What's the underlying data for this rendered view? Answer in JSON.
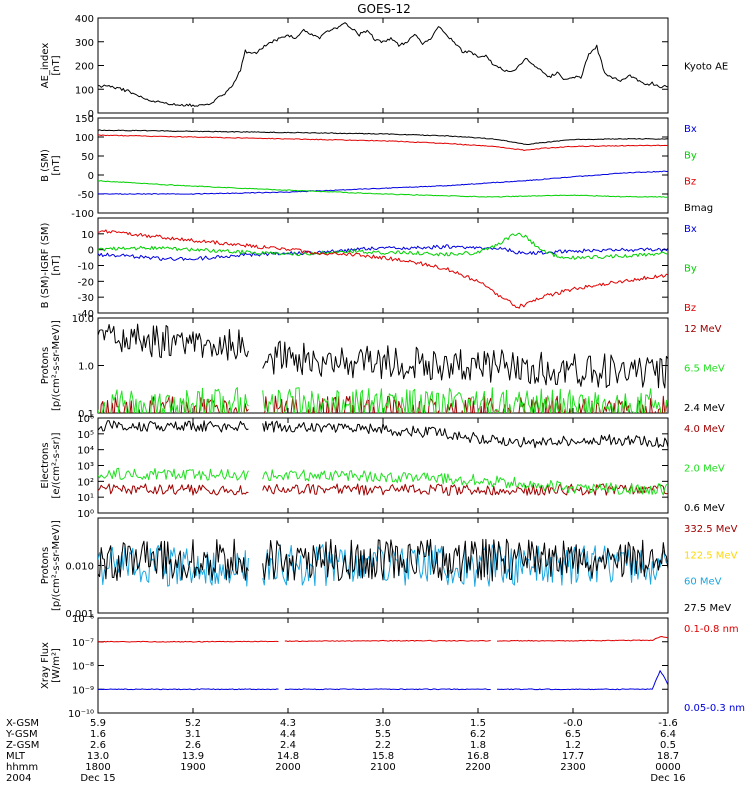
{
  "title": "GOES-12",
  "colors": {
    "black": "#000000",
    "red": "#e00000",
    "darkred": "#a00000",
    "blue": "#0000e0",
    "green": "#00d000",
    "brightgreen": "#22e022",
    "yellow": "#ffd800",
    "cyan": "#1aa6e0"
  },
  "chart_data": [
    {
      "type": "line",
      "ylabel": [
        "AE_index",
        "[nT]"
      ],
      "ylim": [
        0,
        400
      ],
      "yticks": [
        0,
        100,
        200,
        300,
        400
      ],
      "yscale": "linear",
      "legend_placement": "right",
      "series": [
        {
          "name": "Kyoto AE",
          "color": "#000000",
          "x": [
            0,
            5,
            10,
            15,
            20,
            25,
            30,
            38,
            45,
            52,
            60,
            66,
            72,
            75,
            78,
            81,
            84,
            87,
            90,
            93,
            96,
            100,
            105,
            110,
            115,
            120,
            125,
            130,
            135,
            140,
            145,
            150,
            155,
            160,
            165,
            170,
            175,
            180,
            185,
            190,
            195,
            200,
            205,
            210,
            215,
            220,
            225,
            230,
            235,
            240,
            245,
            250,
            255,
            260,
            265,
            270,
            275,
            280,
            285,
            290,
            295,
            300,
            305,
            310,
            315,
            320,
            325,
            330,
            335,
            340,
            345,
            350,
            355,
            360
          ],
          "y": [
            110,
            115,
            105,
            100,
            90,
            75,
            55,
            45,
            40,
            35,
            32,
            35,
            40,
            60,
            70,
            90,
            110,
            140,
            180,
            260,
            250,
            255,
            280,
            300,
            315,
            330,
            310,
            350,
            330,
            315,
            345,
            355,
            380,
            360,
            330,
            345,
            310,
            300,
            315,
            285,
            300,
            330,
            290,
            315,
            365,
            330,
            300,
            260,
            255,
            240,
            240,
            200,
            185,
            175,
            190,
            230,
            200,
            180,
            150,
            170,
            140,
            150,
            150,
            250,
            280,
            170,
            150,
            130,
            160,
            145,
            120,
            125,
            110,
            115
          ]
        }
      ]
    },
    {
      "type": "line",
      "ylabel": [
        "B (SM)",
        "[nT]"
      ],
      "ylim": [
        -100,
        150
      ],
      "yticks": [
        -100,
        -50,
        0,
        50,
        100,
        150
      ],
      "yscale": "linear",
      "legend_placement": "right",
      "series": [
        {
          "name": "Bx",
          "color": "#0000e0",
          "x": [
            0,
            60,
            120,
            180,
            220,
            250,
            270,
            300,
            330,
            360
          ],
          "y": [
            -50,
            -50,
            -45,
            -35,
            -28,
            -20,
            -15,
            -5,
            5,
            10
          ]
        },
        {
          "name": "By",
          "color": "#00d000",
          "x": [
            0,
            40,
            80,
            120,
            180,
            220,
            250,
            270,
            300,
            330,
            360
          ],
          "y": [
            -15,
            -25,
            -33,
            -40,
            -50,
            -55,
            -58,
            -55,
            -53,
            -57,
            -58
          ]
        },
        {
          "name": "Bz",
          "color": "#e00000",
          "x": [
            0,
            60,
            120,
            180,
            220,
            250,
            260,
            270,
            280,
            300,
            330,
            360
          ],
          "y": [
            105,
            100,
            95,
            90,
            83,
            75,
            70,
            65,
            70,
            75,
            77,
            78
          ]
        },
        {
          "name": "Bmag",
          "color": "#000000",
          "x": [
            0,
            60,
            120,
            180,
            220,
            250,
            260,
            270,
            280,
            300,
            330,
            360
          ],
          "y": [
            118,
            115,
            112,
            108,
            103,
            95,
            88,
            80,
            85,
            93,
            95,
            95
          ]
        }
      ]
    },
    {
      "type": "line",
      "ylabel": [
        "B (SM)-IGRF (SM)",
        "[nT]"
      ],
      "ylim": [
        -40,
        20
      ],
      "yticks": [
        -40,
        -30,
        -20,
        -10,
        0,
        10
      ],
      "yscale": "linear",
      "legend_placement": "right",
      "series": [
        {
          "name": "Bx",
          "color": "#0000e0",
          "x": [
            0,
            20,
            40,
            60,
            80,
            100,
            120,
            140,
            160,
            180,
            200,
            220,
            240,
            255,
            265,
            280,
            300,
            320,
            340,
            360
          ],
          "y": [
            -3,
            -4,
            -6,
            -6,
            -4,
            -3,
            -2,
            -2,
            0,
            1,
            1,
            2,
            1,
            1,
            -2,
            -2,
            -1,
            0,
            0,
            0
          ]
        },
        {
          "name": "By",
          "color": "#00d000",
          "x": [
            0,
            20,
            40,
            60,
            80,
            100,
            120,
            140,
            160,
            180,
            200,
            220,
            240,
            250,
            260,
            265,
            270,
            280,
            290,
            300,
            330,
            360
          ],
          "y": [
            0,
            1,
            1,
            0,
            -1,
            -2,
            -3,
            -2,
            -1,
            -2,
            -2,
            -3,
            -2,
            2,
            8,
            10,
            8,
            0,
            -4,
            -5,
            -4,
            -2
          ]
        },
        {
          "name": "Bz",
          "color": "#e00000",
          "x": [
            0,
            20,
            40,
            60,
            80,
            100,
            120,
            140,
            160,
            180,
            200,
            220,
            240,
            255,
            265,
            270,
            280,
            300,
            330,
            360
          ],
          "y": [
            12,
            10,
            8,
            6,
            4,
            2,
            0,
            -2,
            -3,
            -5,
            -8,
            -12,
            -20,
            -30,
            -36,
            -35,
            -30,
            -25,
            -20,
            -16
          ]
        }
      ]
    },
    {
      "type": "line",
      "ylabel": [
        "Protons",
        "[p/(cm²-s-sr-MeV)]"
      ],
      "ylim": [
        0.1,
        10
      ],
      "yticks": [
        0.1,
        1.0,
        10.0
      ],
      "ytick_labels": [
        "0.1",
        "1.0",
        "10.0"
      ],
      "yscale": "log",
      "legend_placement": "right",
      "series": [
        {
          "name": "12 MeV",
          "color": "#a00000",
          "x": [
            0,
            360
          ],
          "y": [
            0.1,
            0.1
          ]
        },
        {
          "name": "6.5 MeV",
          "color": "#22e022",
          "x": [
            0,
            360
          ],
          "y": [
            0.15,
            0.15
          ]
        },
        {
          "name": "2.4 MeV",
          "color": "#000000",
          "x": [
            0,
            95,
            105,
            360
          ],
          "y": [
            4.0,
            2.5,
            1.5,
            0.7
          ]
        }
      ]
    },
    {
      "type": "line",
      "ylabel": [
        "Electrons",
        "[e/(cm²-s-sr)]"
      ],
      "ylim": [
        1,
        1000000
      ],
      "yticks": [
        1,
        10,
        100,
        1000,
        10000,
        100000,
        1000000
      ],
      "ytick_labels": [
        "10⁰",
        "10¹",
        "10²",
        "10³",
        "10⁴",
        "10⁵",
        "10⁶"
      ],
      "yscale": "log",
      "legend_placement": "right",
      "series": [
        {
          "name": "4.0 MeV",
          "color": "#a00000",
          "x": [
            0,
            360
          ],
          "y": [
            30,
            30
          ]
        },
        {
          "name": "2.0 MeV",
          "color": "#22e022",
          "x": [
            0,
            100,
            180,
            240,
            300,
            360
          ],
          "y": [
            300,
            260,
            200,
            120,
            40,
            30
          ]
        },
        {
          "name": "0.6 MeV",
          "color": "#000000",
          "x": [
            0,
            60,
            120,
            180,
            220,
            250,
            260,
            280,
            320,
            360
          ],
          "y": [
            300000,
            300000,
            280000,
            200000,
            100000,
            40000,
            25000,
            30000,
            40000,
            30000
          ]
        }
      ]
    },
    {
      "type": "line",
      "ylabel": [
        "Protons",
        "[p/(cm²-s-sr-MeV)]"
      ],
      "ylim": [
        0.001,
        0.1
      ],
      "yticks": [
        0.001,
        0.01,
        0.1
      ],
      "ytick_labels": [
        "0.001",
        "0.010",
        ""
      ],
      "yscale": "log",
      "legend_placement": "right",
      "series": [
        {
          "name": "332.5 MeV",
          "color": "#a00000",
          "x": [],
          "y": []
        },
        {
          "name": "122.5 MeV",
          "color": "#ffd800",
          "x": [],
          "y": []
        },
        {
          "name": "60 MeV",
          "color": "#1aa6e0",
          "x": [
            0,
            360
          ],
          "y": [
            0.01,
            0.01
          ]
        },
        {
          "name": "27.5 MeV",
          "color": "#000000",
          "x": [
            0,
            360
          ],
          "y": [
            0.013,
            0.013
          ]
        }
      ]
    },
    {
      "type": "line",
      "ylabel": [
        "Xray Flux",
        "[W/m²]"
      ],
      "ylim": [
        1e-10,
        1e-06
      ],
      "yticks": [
        1e-10,
        1e-09,
        1e-08,
        1e-07,
        1e-06
      ],
      "ytick_labels": [
        "10⁻¹⁰",
        "10⁻⁹",
        "10⁻⁸",
        "10⁻⁷",
        "10⁻⁶"
      ],
      "yscale": "log",
      "legend_placement": "right",
      "series": [
        {
          "name": "0.1-0.8 nm",
          "color": "#e00000",
          "x": [
            0,
            60,
            120,
            180,
            240,
            300,
            350,
            356,
            360
          ],
          "y": [
            1e-07,
            1e-07,
            1.05e-07,
            1.1e-07,
            1.1e-07,
            1.1e-07,
            1.15e-07,
            1.7e-07,
            1.4e-07
          ]
        },
        {
          "name": "0.05-0.3 nm",
          "color": "#0000e0",
          "x": [
            0,
            60,
            120,
            180,
            240,
            300,
            350,
            355,
            358,
            360
          ],
          "y": [
            1e-09,
            1e-09,
            1e-09,
            1e-09,
            1e-09,
            1e-09,
            1e-09,
            6e-09,
            3e-09,
            1.5e-09
          ]
        }
      ]
    }
  ],
  "xaxis": {
    "row_labels": [
      "X-GSM",
      "Y-GSM",
      "Z-GSM",
      "MLT",
      "hhmm",
      "2004"
    ],
    "ticks": [
      {
        "x": 0,
        "values": [
          "5.9",
          "1.6",
          "2.6",
          "13.0",
          "1800",
          "Dec 15"
        ]
      },
      {
        "x": 60,
        "values": [
          "5.2",
          "3.1",
          "2.6",
          "13.9",
          "1900",
          ""
        ]
      },
      {
        "x": 120,
        "values": [
          "4.3",
          "4.4",
          "2.4",
          "14.8",
          "2000",
          ""
        ]
      },
      {
        "x": 180,
        "values": [
          "3.0",
          "5.5",
          "2.2",
          "15.8",
          "2100",
          ""
        ]
      },
      {
        "x": 240,
        "values": [
          "1.5",
          "6.2",
          "1.8",
          "16.8",
          "2200",
          ""
        ]
      },
      {
        "x": 300,
        "values": [
          "-0.0",
          "6.5",
          "1.2",
          "17.7",
          "2300",
          ""
        ]
      },
      {
        "x": 360,
        "values": [
          "-1.6",
          "6.4",
          "0.5",
          "18.7",
          "0000",
          "Dec 16"
        ]
      }
    ]
  }
}
